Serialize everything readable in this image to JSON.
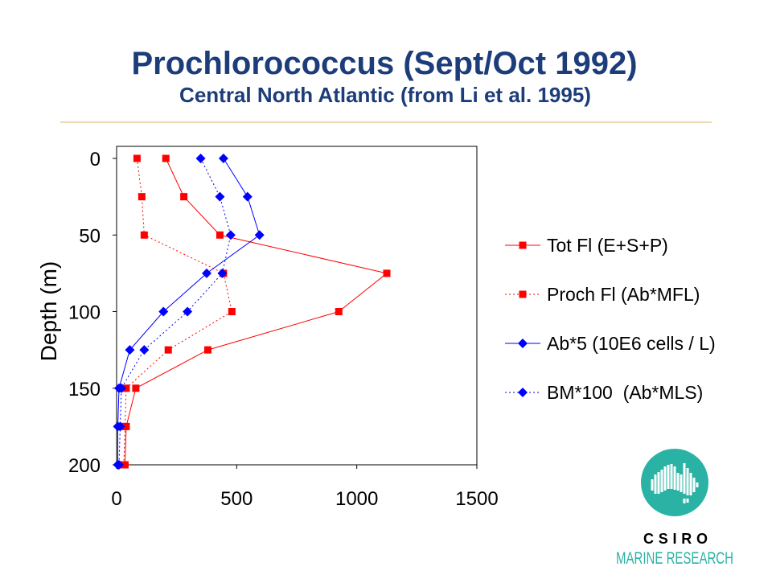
{
  "colors": {
    "background": "#ffffff",
    "title": "#1c3c7a",
    "rule": "#d8b46a",
    "axis": "#000000"
  },
  "chart_data": {
    "type": "line",
    "title": "Prochlorococcus (Sept/Oct 1992)",
    "subtitle": "Central North Atlantic (from Li et al. 1995)",
    "xlabel": "",
    "ylabel": "Depth (m)",
    "xlim": [
      0,
      1500
    ],
    "ylim": [
      0,
      200
    ],
    "y_axis_reversed": true,
    "xticks": [
      0,
      500,
      1000,
      1500
    ],
    "yticks": [
      0,
      50,
      100,
      150,
      200
    ],
    "grid": false,
    "legend_position": "right",
    "y": [
      0,
      25,
      50,
      75,
      100,
      125,
      150,
      175,
      200
    ],
    "series": [
      {
        "name": "Tot Fl (E+S+P)",
        "color": "#ff0000",
        "marker": "square",
        "line_style": "solid",
        "x": [
          205,
          280,
          430,
          1125,
          925,
          380,
          80,
          40,
          35
        ]
      },
      {
        "name": "Proch Fl (Ab*MFL)",
        "color": "#ff0000",
        "marker": "square",
        "line_style": "dotted",
        "x": [
          85,
          105,
          115,
          445,
          480,
          215,
          40,
          35,
          30
        ]
      },
      {
        "name": "Ab*5 (10E6 cells / L)",
        "color": "#0000ff",
        "marker": "diamond",
        "line_style": "solid",
        "x": [
          445,
          545,
          595,
          375,
          195,
          55,
          10,
          5,
          5
        ]
      },
      {
        "name": "BM*100  (Ab*MLS)",
        "color": "#0000ff",
        "marker": "diamond",
        "line_style": "dotted",
        "x": [
          350,
          430,
          475,
          440,
          295,
          115,
          20,
          15,
          10
        ]
      }
    ]
  },
  "logo": {
    "name": "CSIRO",
    "division": "MARINE RESEARCH",
    "color": "#2ab3a5"
  }
}
